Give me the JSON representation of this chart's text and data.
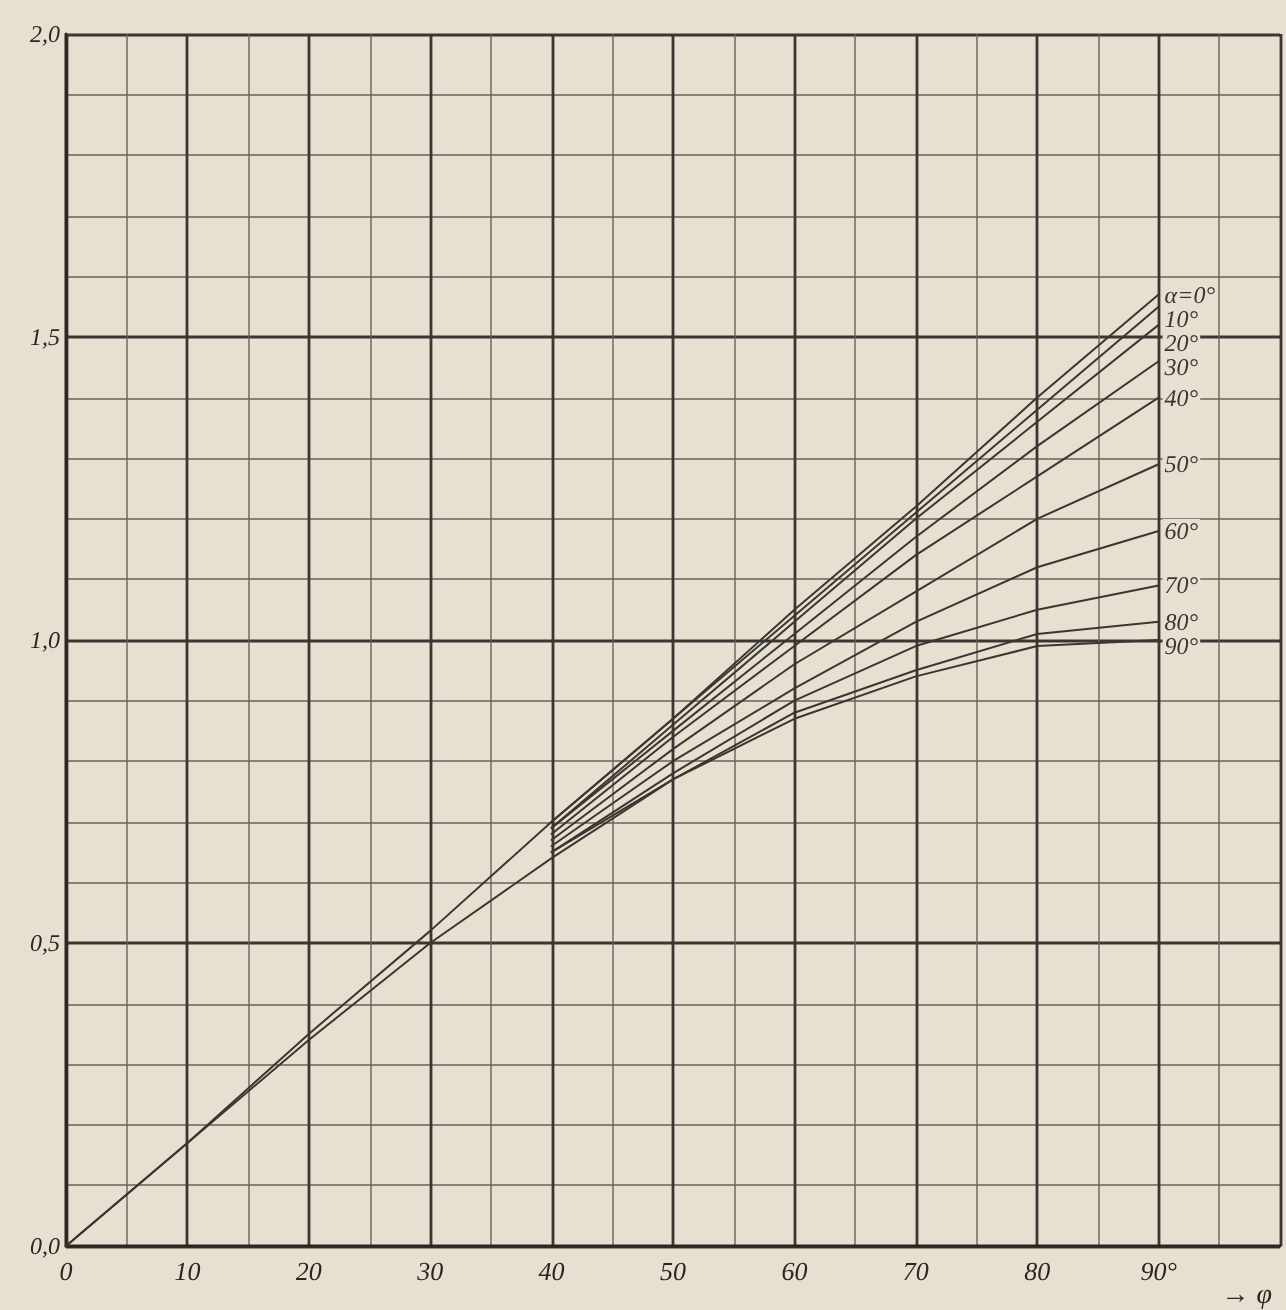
{
  "chart_data": {
    "type": "line",
    "xlabel": "→ φ",
    "x": [
      40,
      50,
      60,
      70,
      80,
      90
    ],
    "xlim": [
      0,
      100
    ],
    "xticks": [
      0,
      {
        "value": 5,
        "label": null
      },
      10,
      {
        "value": 15,
        "label": null
      },
      20,
      {
        "value": 25,
        "label": null
      },
      30,
      {
        "value": 35,
        "label": null
      },
      40,
      {
        "value": 45,
        "label": null
      },
      50,
      {
        "value": 55,
        "label": null
      },
      60,
      {
        "value": 65,
        "label": null
      },
      70,
      {
        "value": 75,
        "label": null
      },
      80,
      {
        "value": 85,
        "label": null
      },
      {
        "value": 90,
        "label": "90°"
      },
      {
        "value": 95,
        "label": null
      }
    ],
    "ylim": [
      0,
      2
    ],
    "yticks": [
      {
        "value": 0,
        "label": "0,0"
      },
      {
        "value": 0.1,
        "label": null
      },
      {
        "value": 0.2,
        "label": null
      },
      {
        "value": 0.3,
        "label": null
      },
      {
        "value": 0.4,
        "label": null
      },
      {
        "value": 0.5,
        "label": "0,5"
      },
      {
        "value": 0.6,
        "label": null
      },
      {
        "value": 0.7,
        "label": null
      },
      {
        "value": 0.8,
        "label": null
      },
      {
        "value": 0.9,
        "label": null
      },
      {
        "value": 1,
        "label": "1,0"
      },
      {
        "value": 1.1,
        "label": null
      },
      {
        "value": 1.2,
        "label": null
      },
      {
        "value": 1.3,
        "label": null
      },
      {
        "value": 1.4,
        "label": null
      },
      {
        "value": 1.5,
        "label": "1,5"
      },
      {
        "value": 1.6,
        "label": null
      },
      {
        "value": 1.7,
        "label": null
      },
      {
        "value": 1.8,
        "label": null
      },
      {
        "value": 1.9,
        "label": null
      },
      {
        "value": 2,
        "label": "2,0"
      }
    ],
    "grid": true,
    "legend": false,
    "marker": "none",
    "line_style": "solid",
    "series": [
      {
        "name": "α=0°",
        "color": "#3a3632",
        "x": [
          0,
          10,
          20,
          30,
          40,
          50,
          60,
          70,
          80,
          90
        ],
        "values": [
          0,
          0.17,
          0.35,
          0.52,
          0.7,
          0.87,
          1.05,
          1.22,
          1.4,
          1.57
        ]
      },
      {
        "name": "10°",
        "color": "#3a3632",
        "values": [
          0.7,
          0.87,
          1.04,
          1.21,
          1.38,
          1.55
        ]
      },
      {
        "name": "20°",
        "color": "#3a3632",
        "values": [
          0.69,
          0.86,
          1.03,
          1.2,
          1.36,
          1.52
        ]
      },
      {
        "name": "30°",
        "color": "#3a3632",
        "values": [
          0.69,
          0.85,
          1.01,
          1.17,
          1.32,
          1.46
        ]
      },
      {
        "name": "40°",
        "color": "#3a3632",
        "values": [
          0.68,
          0.84,
          0.99,
          1.14,
          1.27,
          1.4
        ]
      },
      {
        "name": "50°",
        "color": "#3a3632",
        "values": [
          0.67,
          0.82,
          0.96,
          1.08,
          1.2,
          1.29
        ]
      },
      {
        "name": "60°",
        "color": "#3a3632",
        "values": [
          0.66,
          0.8,
          0.92,
          1.03,
          1.12,
          1.18
        ]
      },
      {
        "name": "70°",
        "color": "#3a3632",
        "values": [
          0.65,
          0.78,
          0.9,
          0.99,
          1.05,
          1.09
        ]
      },
      {
        "name": "80°",
        "color": "#3a3632",
        "values": [
          0.65,
          0.77,
          0.88,
          0.95,
          1.01,
          1.03
        ]
      },
      {
        "name": "90°",
        "color": "#3a3632",
        "x": [
          0,
          10,
          20,
          30,
          40,
          50,
          60,
          70,
          80,
          90
        ],
        "values": [
          0,
          0.17,
          0.34,
          0.5,
          0.64,
          0.77,
          0.87,
          0.94,
          0.99,
          1.0
        ]
      }
    ]
  }
}
